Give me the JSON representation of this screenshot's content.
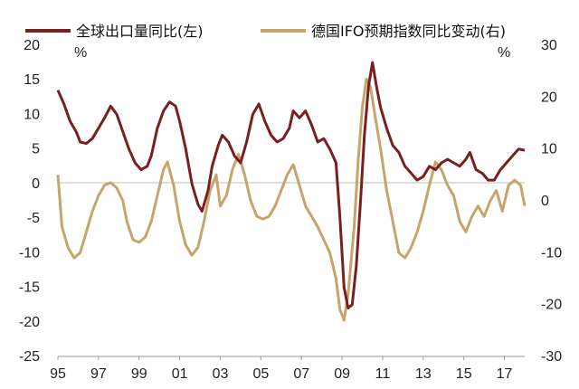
{
  "chart_data": {
    "type": "line",
    "xlabel": "",
    "ylabel": "",
    "x_tick_labels": [
      "95",
      "97",
      "99",
      "01",
      "03",
      "05",
      "07",
      "09",
      "11",
      "13",
      "15",
      "17"
    ],
    "x_range": [
      1995.0,
      2018.0
    ],
    "y_left": {
      "range": [
        -25,
        20
      ],
      "ticks": [
        "20",
        "15",
        "10",
        "5",
        "0",
        "-5",
        "-10",
        "-15",
        "-20",
        "-25"
      ],
      "unit": "%"
    },
    "y_right": {
      "range": [
        -30,
        30
      ],
      "ticks": [
        "30",
        "20",
        "10",
        "0",
        "-10",
        "-20",
        "-30"
      ],
      "unit": "%"
    },
    "legend": {
      "placement": "top"
    },
    "grid": false,
    "series": [
      {
        "name": "全球出口量同比(左)",
        "axis": "left",
        "color": "#7a1f1f",
        "points": [
          [
            1995.0,
            13.5
          ],
          [
            1995.3,
            11.5
          ],
          [
            1995.6,
            9.0
          ],
          [
            1995.9,
            7.5
          ],
          [
            1996.1,
            6.0
          ],
          [
            1996.4,
            5.8
          ],
          [
            1996.7,
            6.5
          ],
          [
            1997.0,
            8.0
          ],
          [
            1997.3,
            9.5
          ],
          [
            1997.6,
            11.2
          ],
          [
            1997.9,
            10.0
          ],
          [
            1998.2,
            7.5
          ],
          [
            1998.5,
            5.0
          ],
          [
            1998.8,
            3.0
          ],
          [
            1999.1,
            2.0
          ],
          [
            1999.4,
            2.5
          ],
          [
            1999.6,
            4.0
          ],
          [
            1999.9,
            8.0
          ],
          [
            2000.2,
            10.5
          ],
          [
            2000.5,
            11.8
          ],
          [
            2000.8,
            11.2
          ],
          [
            2001.0,
            9.0
          ],
          [
            2001.3,
            5.0
          ],
          [
            2001.6,
            0.0
          ],
          [
            2001.9,
            -3.0
          ],
          [
            2002.1,
            -4.0
          ],
          [
            2002.4,
            -1.0
          ],
          [
            2002.6,
            2.5
          ],
          [
            2002.9,
            5.5
          ],
          [
            2003.1,
            7.0
          ],
          [
            2003.4,
            6.0
          ],
          [
            2003.7,
            4.0
          ],
          [
            2004.0,
            3.0
          ],
          [
            2004.3,
            6.0
          ],
          [
            2004.6,
            10.0
          ],
          [
            2004.9,
            11.5
          ],
          [
            2005.2,
            9.0
          ],
          [
            2005.5,
            7.0
          ],
          [
            2005.8,
            6.0
          ],
          [
            2006.1,
            6.5
          ],
          [
            2006.4,
            8.0
          ],
          [
            2006.6,
            10.5
          ],
          [
            2006.9,
            9.5
          ],
          [
            2007.2,
            10.5
          ],
          [
            2007.5,
            8.5
          ],
          [
            2007.8,
            6.0
          ],
          [
            2008.1,
            6.5
          ],
          [
            2008.4,
            5.0
          ],
          [
            2008.7,
            3.0
          ],
          [
            2008.9,
            -5.0
          ],
          [
            2009.1,
            -15.0
          ],
          [
            2009.3,
            -18.0
          ],
          [
            2009.5,
            -17.5
          ],
          [
            2009.7,
            -12.0
          ],
          [
            2009.9,
            -3.0
          ],
          [
            2010.1,
            7.0
          ],
          [
            2010.3,
            14.0
          ],
          [
            2010.5,
            17.5
          ],
          [
            2010.7,
            14.0
          ],
          [
            2010.9,
            11.0
          ],
          [
            2011.2,
            8.0
          ],
          [
            2011.5,
            5.5
          ],
          [
            2011.8,
            4.5
          ],
          [
            2012.1,
            2.5
          ],
          [
            2012.4,
            1.5
          ],
          [
            2012.7,
            0.5
          ],
          [
            2013.0,
            1.0
          ],
          [
            2013.3,
            2.5
          ],
          [
            2013.6,
            2.0
          ],
          [
            2013.9,
            3.0
          ],
          [
            2014.2,
            3.5
          ],
          [
            2014.5,
            3.0
          ],
          [
            2014.8,
            2.5
          ],
          [
            2015.1,
            3.5
          ],
          [
            2015.3,
            4.5
          ],
          [
            2015.6,
            2.0
          ],
          [
            2015.9,
            1.5
          ],
          [
            2016.2,
            0.5
          ],
          [
            2016.5,
            0.5
          ],
          [
            2016.8,
            2.0
          ],
          [
            2017.1,
            3.0
          ],
          [
            2017.4,
            4.0
          ],
          [
            2017.7,
            5.0
          ],
          [
            2018.0,
            4.8
          ]
        ]
      },
      {
        "name": "德国IFO预期指数同比变动(右)",
        "axis": "right",
        "color": "#c6a46c",
        "points": [
          [
            1995.0,
            5.0
          ],
          [
            1995.2,
            -5.0
          ],
          [
            1995.5,
            -9.0
          ],
          [
            1995.8,
            -11.0
          ],
          [
            1996.1,
            -10.0
          ],
          [
            1996.4,
            -6.0
          ],
          [
            1996.7,
            -2.0
          ],
          [
            1997.0,
            1.0
          ],
          [
            1997.3,
            3.0
          ],
          [
            1997.6,
            3.5
          ],
          [
            1997.9,
            2.5
          ],
          [
            1998.2,
            0.0
          ],
          [
            1998.4,
            -4.0
          ],
          [
            1998.7,
            -7.5
          ],
          [
            1999.0,
            -8.0
          ],
          [
            1999.3,
            -7.0
          ],
          [
            1999.6,
            -4.0
          ],
          [
            1999.9,
            1.0
          ],
          [
            2000.2,
            6.0
          ],
          [
            2000.4,
            7.5
          ],
          [
            2000.7,
            3.0
          ],
          [
            2001.0,
            -4.0
          ],
          [
            2001.3,
            -8.5
          ],
          [
            2001.6,
            -10.5
          ],
          [
            2001.9,
            -9.0
          ],
          [
            2002.2,
            -4.0
          ],
          [
            2002.5,
            2.0
          ],
          [
            2002.8,
            5.0
          ],
          [
            2003.0,
            -1.0
          ],
          [
            2003.3,
            1.0
          ],
          [
            2003.6,
            6.0
          ],
          [
            2003.9,
            9.0
          ],
          [
            2004.2,
            5.0
          ],
          [
            2004.5,
            0.0
          ],
          [
            2004.8,
            -3.0
          ],
          [
            2005.1,
            -3.5
          ],
          [
            2005.4,
            -3.0
          ],
          [
            2005.7,
            -1.0
          ],
          [
            2006.0,
            2.0
          ],
          [
            2006.3,
            5.0
          ],
          [
            2006.6,
            7.0
          ],
          [
            2006.9,
            3.0
          ],
          [
            2007.2,
            -1.0
          ],
          [
            2007.5,
            -3.0
          ],
          [
            2007.8,
            -5.0
          ],
          [
            2008.1,
            -7.5
          ],
          [
            2008.4,
            -10.0
          ],
          [
            2008.7,
            -15.0
          ],
          [
            2008.9,
            -21.0
          ],
          [
            2009.1,
            -23.0
          ],
          [
            2009.3,
            -18.0
          ],
          [
            2009.6,
            -5.0
          ],
          [
            2009.8,
            8.0
          ],
          [
            2010.0,
            18.0
          ],
          [
            2010.2,
            23.5
          ],
          [
            2010.4,
            22.0
          ],
          [
            2010.6,
            17.0
          ],
          [
            2010.9,
            10.0
          ],
          [
            2011.2,
            2.0
          ],
          [
            2011.5,
            -4.0
          ],
          [
            2011.8,
            -10.0
          ],
          [
            2012.1,
            -11.0
          ],
          [
            2012.4,
            -9.0
          ],
          [
            2012.7,
            -6.0
          ],
          [
            2013.0,
            -2.0
          ],
          [
            2013.3,
            3.0
          ],
          [
            2013.6,
            7.5
          ],
          [
            2013.9,
            6.0
          ],
          [
            2014.2,
            3.0
          ],
          [
            2014.5,
            1.0
          ],
          [
            2014.8,
            -4.0
          ],
          [
            2015.1,
            -6.0
          ],
          [
            2015.4,
            -3.0
          ],
          [
            2015.7,
            -1.0
          ],
          [
            2016.0,
            -3.0
          ],
          [
            2016.3,
            0.0
          ],
          [
            2016.6,
            2.0
          ],
          [
            2016.9,
            -2.0
          ],
          [
            2017.2,
            3.0
          ],
          [
            2017.5,
            4.0
          ],
          [
            2017.8,
            3.0
          ],
          [
            2018.0,
            -1.0
          ]
        ]
      }
    ]
  }
}
